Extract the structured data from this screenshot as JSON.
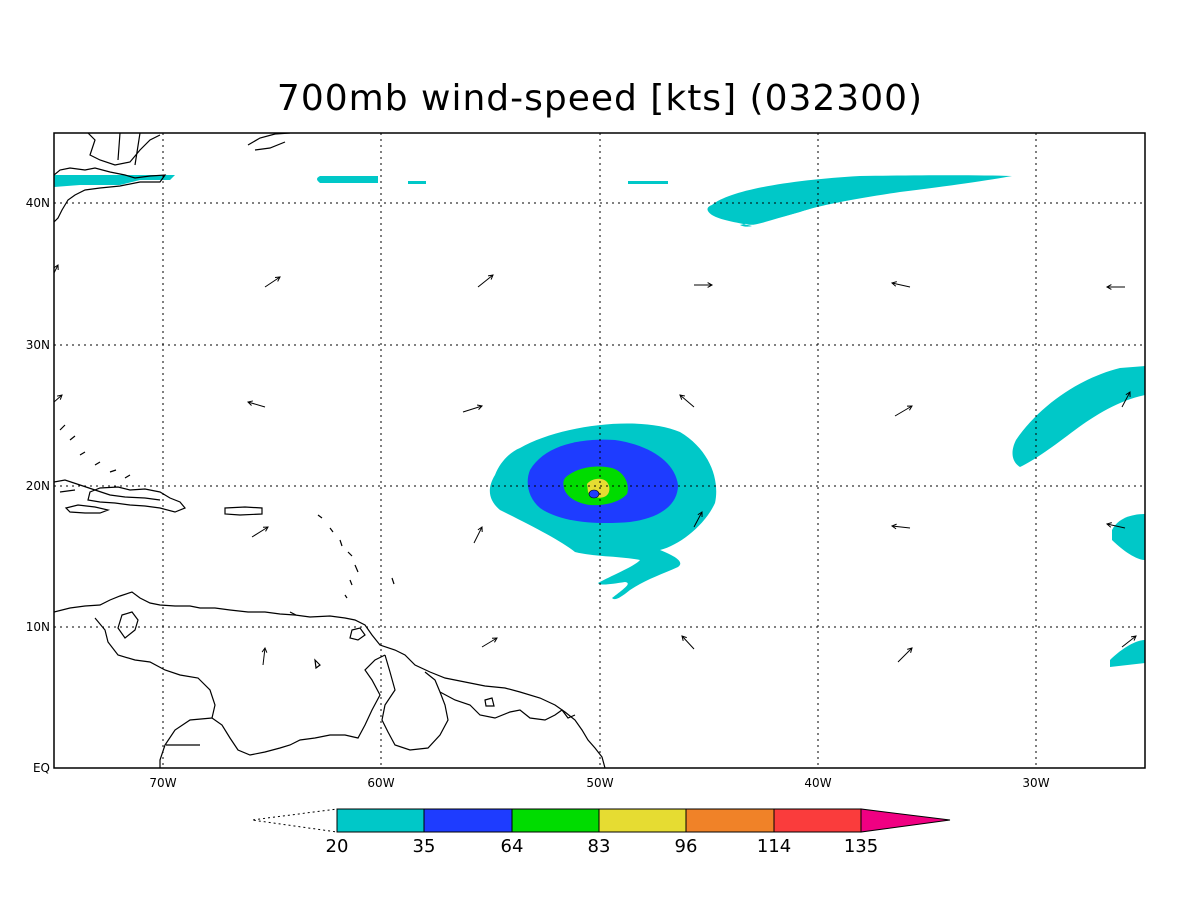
{
  "title": "700mb wind-speed [kts] (032300)",
  "lat_labels": [
    "40N",
    "30N",
    "20N",
    "10N",
    "EQ"
  ],
  "lon_labels": [
    "70W",
    "60W",
    "50W",
    "40W",
    "30W"
  ],
  "colorbar": {
    "ticks": [
      "20",
      "35",
      "64",
      "83",
      "96",
      "114",
      "135"
    ],
    "colors": [
      "#00c8c8",
      "#1e3cff",
      "#00dc00",
      "#e6dc32",
      "#f08228",
      "#fa3c3c",
      "#f00082"
    ]
  },
  "colors": {
    "land_outline": "#000000",
    "grid": "#000000",
    "c20": "#00c8c8",
    "c35": "#1e3cff",
    "c64": "#00dc00",
    "c83": "#e6dc32"
  }
}
